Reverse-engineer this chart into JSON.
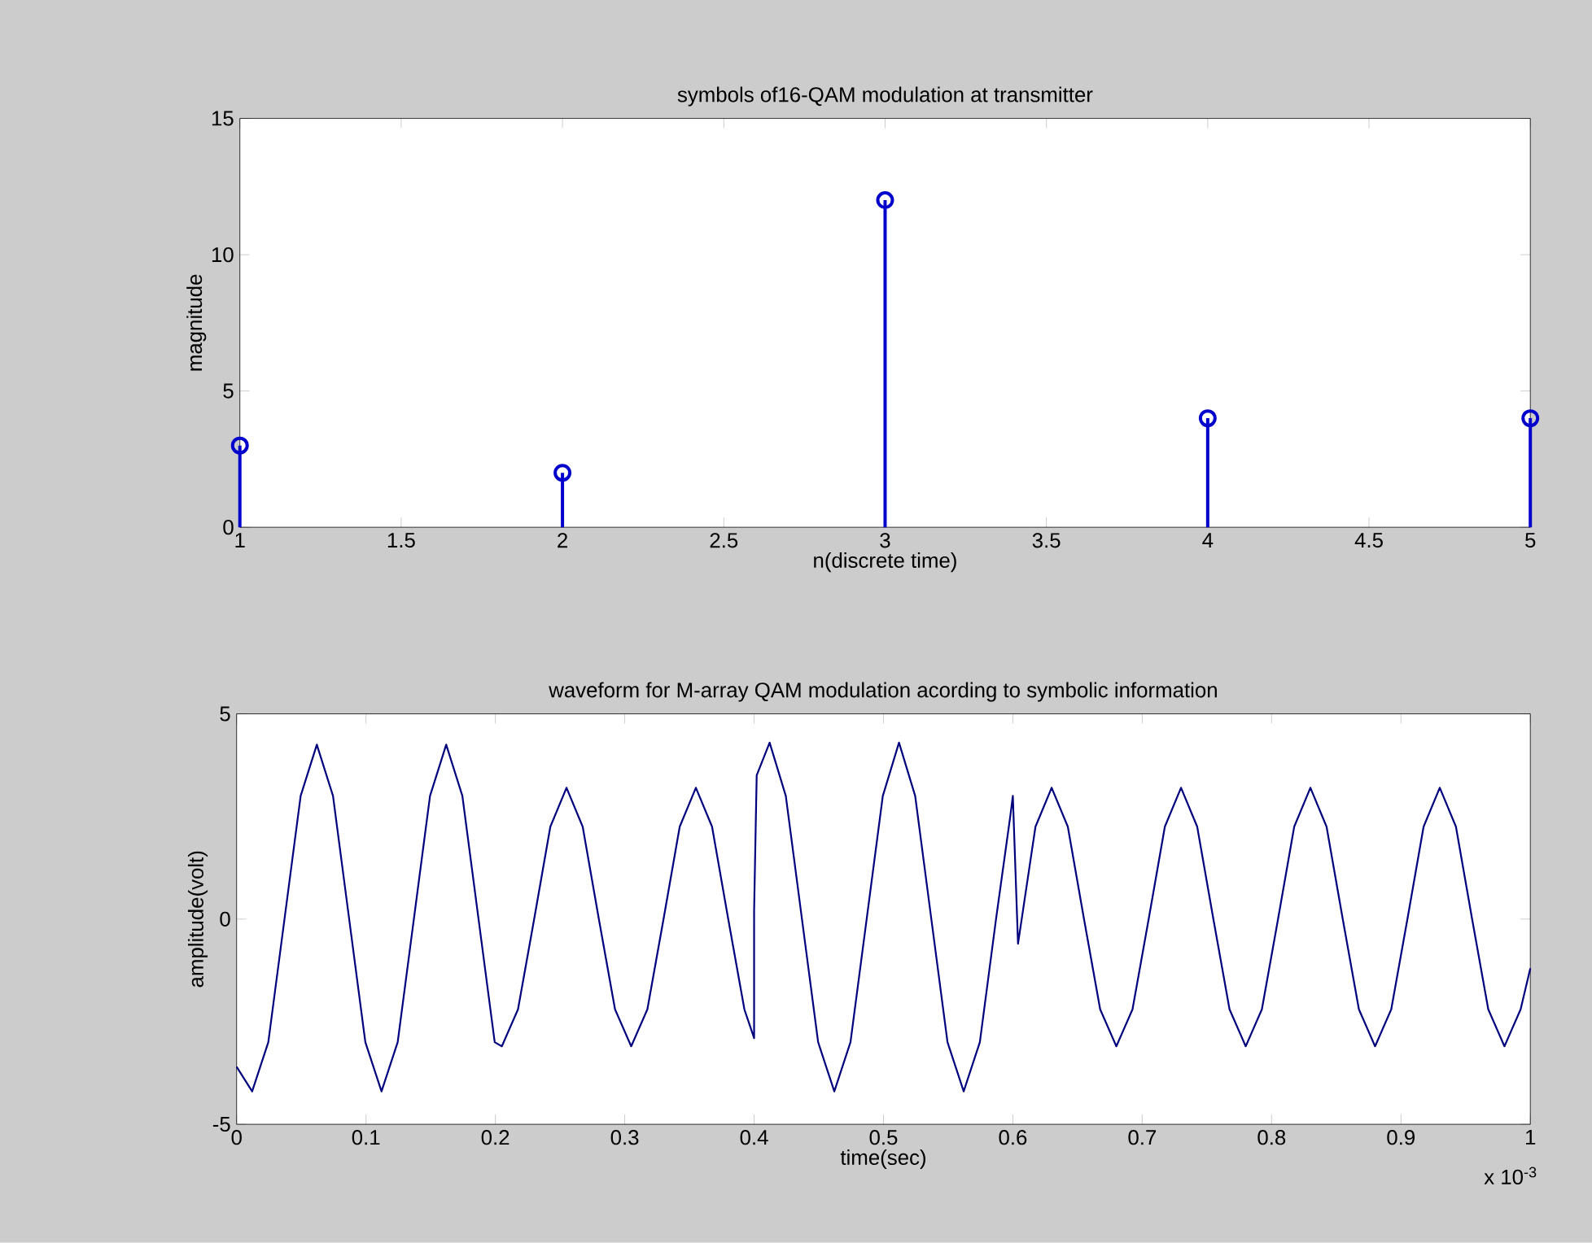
{
  "chart_data": [
    {
      "type": "lollipop",
      "title": "symbols of16-QAM modulation at transmitter",
      "xlabel": "n(discrete time)",
      "ylabel": "magnitude",
      "x": [
        1,
        2,
        3,
        4,
        5
      ],
      "values": [
        3,
        2,
        12,
        4,
        4
      ],
      "color": "#0000cc",
      "marker": "circle",
      "xlim": [
        1,
        5
      ],
      "xticks": [
        1,
        1.5,
        2,
        2.5,
        3,
        3.5,
        4,
        4.5,
        5
      ],
      "ylim": [
        0,
        15
      ],
      "yticks": [
        0,
        5,
        10,
        15
      ]
    },
    {
      "type": "line",
      "title": "waveform for M-array QAM modulation acording to symbolic information",
      "xlabel": "time(sec)",
      "ylabel": "amplitude(volt)",
      "annotations": [
        "x 10$^{-3}$"
      ],
      "color": "#00007f",
      "line_style": "solid",
      "x": [
        0,
        0.012,
        0.0245,
        0.037,
        0.0495,
        0.062,
        0.0745,
        0.087,
        0.0995,
        0.112,
        0.1245,
        0.137,
        0.1495,
        0.162,
        0.1745,
        0.187,
        0.1995,
        0.205,
        0.2175,
        0.23,
        0.2425,
        0.255,
        0.2675,
        0.28,
        0.2925,
        0.305,
        0.3175,
        0.33,
        0.3425,
        0.355,
        0.3675,
        0.38,
        0.3925,
        0.4,
        0.4,
        0.402,
        0.412,
        0.4245,
        0.437,
        0.4495,
        0.462,
        0.4745,
        0.487,
        0.4995,
        0.512,
        0.5245,
        0.537,
        0.5495,
        0.562,
        0.5745,
        0.587,
        0.598,
        0.6,
        0.604,
        0.6175,
        0.63,
        0.6425,
        0.655,
        0.6675,
        0.68,
        0.6925,
        0.705,
        0.7175,
        0.73,
        0.7425,
        0.755,
        0.7675,
        0.78,
        0.7925,
        0.805,
        0.8175,
        0.83,
        0.8425,
        0.855,
        0.8675,
        0.88,
        0.8925,
        0.905,
        0.9175,
        0.93,
        0.9425,
        0.955,
        0.9675,
        0.98,
        0.9925,
        1.0
      ],
      "values": [
        -3.6,
        -4.2,
        -3.0,
        0,
        3.0,
        4.25,
        3.0,
        0,
        -3.0,
        -4.2,
        -3.0,
        0,
        3.0,
        4.25,
        3.0,
        0,
        -3.0,
        -3.1,
        -2.2,
        0,
        2.25,
        3.2,
        2.25,
        0,
        -2.2,
        -3.1,
        -2.2,
        0,
        2.25,
        3.2,
        2.25,
        0,
        -2.2,
        -2.9,
        0.2,
        3.5,
        4.3,
        3.0,
        0,
        -3.0,
        -4.2,
        -3.0,
        0,
        3.0,
        4.3,
        3.0,
        0,
        -3.0,
        -4.2,
        -3.0,
        0,
        2.5,
        3.0,
        -0.6,
        2.25,
        3.2,
        2.25,
        0,
        -2.2,
        -3.1,
        -2.2,
        0,
        2.25,
        3.2,
        2.25,
        0,
        -2.2,
        -3.1,
        -2.2,
        0,
        2.25,
        3.2,
        2.25,
        0,
        -2.2,
        -3.1,
        -2.2,
        0,
        2.25,
        3.2,
        2.25,
        0,
        -2.2,
        -3.1,
        -2.2,
        -1.2
      ],
      "xlim": [
        0,
        1
      ],
      "xticks": [
        0,
        0.1,
        0.2,
        0.3,
        0.4,
        0.5,
        0.6,
        0.7,
        0.8,
        0.9,
        1
      ],
      "ylim": [
        -5,
        5
      ],
      "yticks": [
        -5,
        0,
        5
      ]
    }
  ]
}
